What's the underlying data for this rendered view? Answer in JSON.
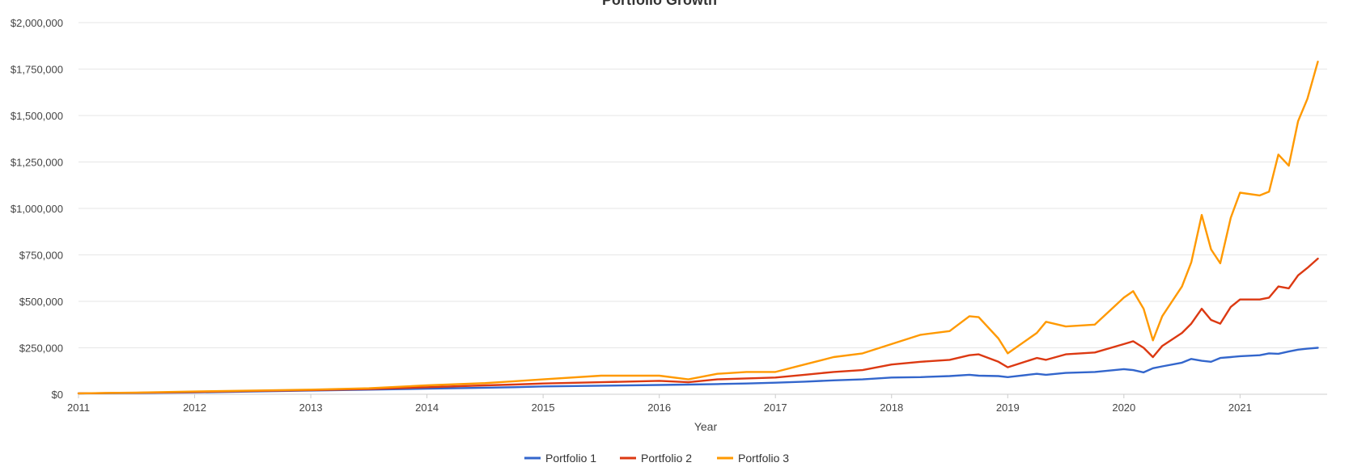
{
  "chart_data": {
    "type": "line",
    "title": "Portfolio Growth",
    "xlabel": "Year",
    "ylabel": "",
    "xlim": [
      2011.0,
      2021.75
    ],
    "ylim": [
      0,
      2000000
    ],
    "x_ticks": [
      2011,
      2012,
      2013,
      2014,
      2015,
      2016,
      2017,
      2018,
      2019,
      2020,
      2021
    ],
    "y_ticks": [
      0,
      250000,
      500000,
      750000,
      1000000,
      1250000,
      1500000,
      1750000,
      2000000
    ],
    "y_tick_labels": [
      "$0",
      "$250,000",
      "$500,000",
      "$750,000",
      "$1,000,000",
      "$1,250,000",
      "$1,500,000",
      "$1,750,000",
      "$2,000,000"
    ],
    "x_tick_labels": [
      "2011",
      "2012",
      "2013",
      "2014",
      "2015",
      "2016",
      "2017",
      "2018",
      "2019",
      "2020",
      "2021"
    ],
    "grid": true,
    "legend_position": "bottom-center",
    "x": [
      2011.0,
      2011.5,
      2012.0,
      2012.5,
      2013.0,
      2013.5,
      2014.0,
      2014.5,
      2014.75,
      2015.0,
      2015.5,
      2016.0,
      2016.25,
      2016.5,
      2016.75,
      2017.0,
      2017.25,
      2017.5,
      2017.75,
      2018.0,
      2018.25,
      2018.5,
      2018.67,
      2018.75,
      2018.92,
      2019.0,
      2019.25,
      2019.33,
      2019.5,
      2019.75,
      2020.0,
      2020.08,
      2020.17,
      2020.25,
      2020.33,
      2020.5,
      2020.58,
      2020.67,
      2020.75,
      2020.83,
      2020.92,
      2021.0,
      2021.17,
      2021.25,
      2021.33,
      2021.42,
      2021.5,
      2021.58,
      2021.67
    ],
    "series": [
      {
        "name": "Portfolio 1",
        "color": "#3366cc",
        "values": [
          5000,
          7000,
          10000,
          15000,
          20000,
          25000,
          30000,
          35000,
          38000,
          42000,
          46000,
          50000,
          52000,
          55000,
          58000,
          62000,
          68000,
          75000,
          80000,
          90000,
          92000,
          98000,
          105000,
          100000,
          98000,
          92000,
          110000,
          105000,
          115000,
          120000,
          135000,
          130000,
          118000,
          140000,
          150000,
          170000,
          190000,
          180000,
          175000,
          195000,
          200000,
          205000,
          210000,
          220000,
          218000,
          230000,
          240000,
          245000,
          250000
        ]
      },
      {
        "name": "Portfolio 2",
        "color": "#dc3912",
        "values": [
          5000,
          8000,
          12000,
          18000,
          22000,
          28000,
          38000,
          48000,
          52000,
          58000,
          65000,
          72000,
          65000,
          80000,
          85000,
          90000,
          105000,
          120000,
          130000,
          160000,
          175000,
          185000,
          210000,
          215000,
          175000,
          145000,
          195000,
          185000,
          215000,
          225000,
          270000,
          285000,
          250000,
          200000,
          260000,
          330000,
          380000,
          460000,
          400000,
          380000,
          470000,
          510000,
          510000,
          520000,
          580000,
          570000,
          640000,
          680000,
          730000
        ]
      },
      {
        "name": "Portfolio 3",
        "color": "#ff9900",
        "values": [
          5000,
          9000,
          15000,
          20000,
          25000,
          32000,
          48000,
          60000,
          70000,
          80000,
          100000,
          100000,
          80000,
          110000,
          120000,
          120000,
          160000,
          200000,
          220000,
          270000,
          320000,
          340000,
          420000,
          415000,
          300000,
          220000,
          330000,
          390000,
          365000,
          375000,
          520000,
          555000,
          460000,
          290000,
          420000,
          580000,
          710000,
          965000,
          780000,
          705000,
          950000,
          1085000,
          1070000,
          1090000,
          1290000,
          1230000,
          1470000,
          1590000,
          1790000
        ]
      }
    ]
  }
}
